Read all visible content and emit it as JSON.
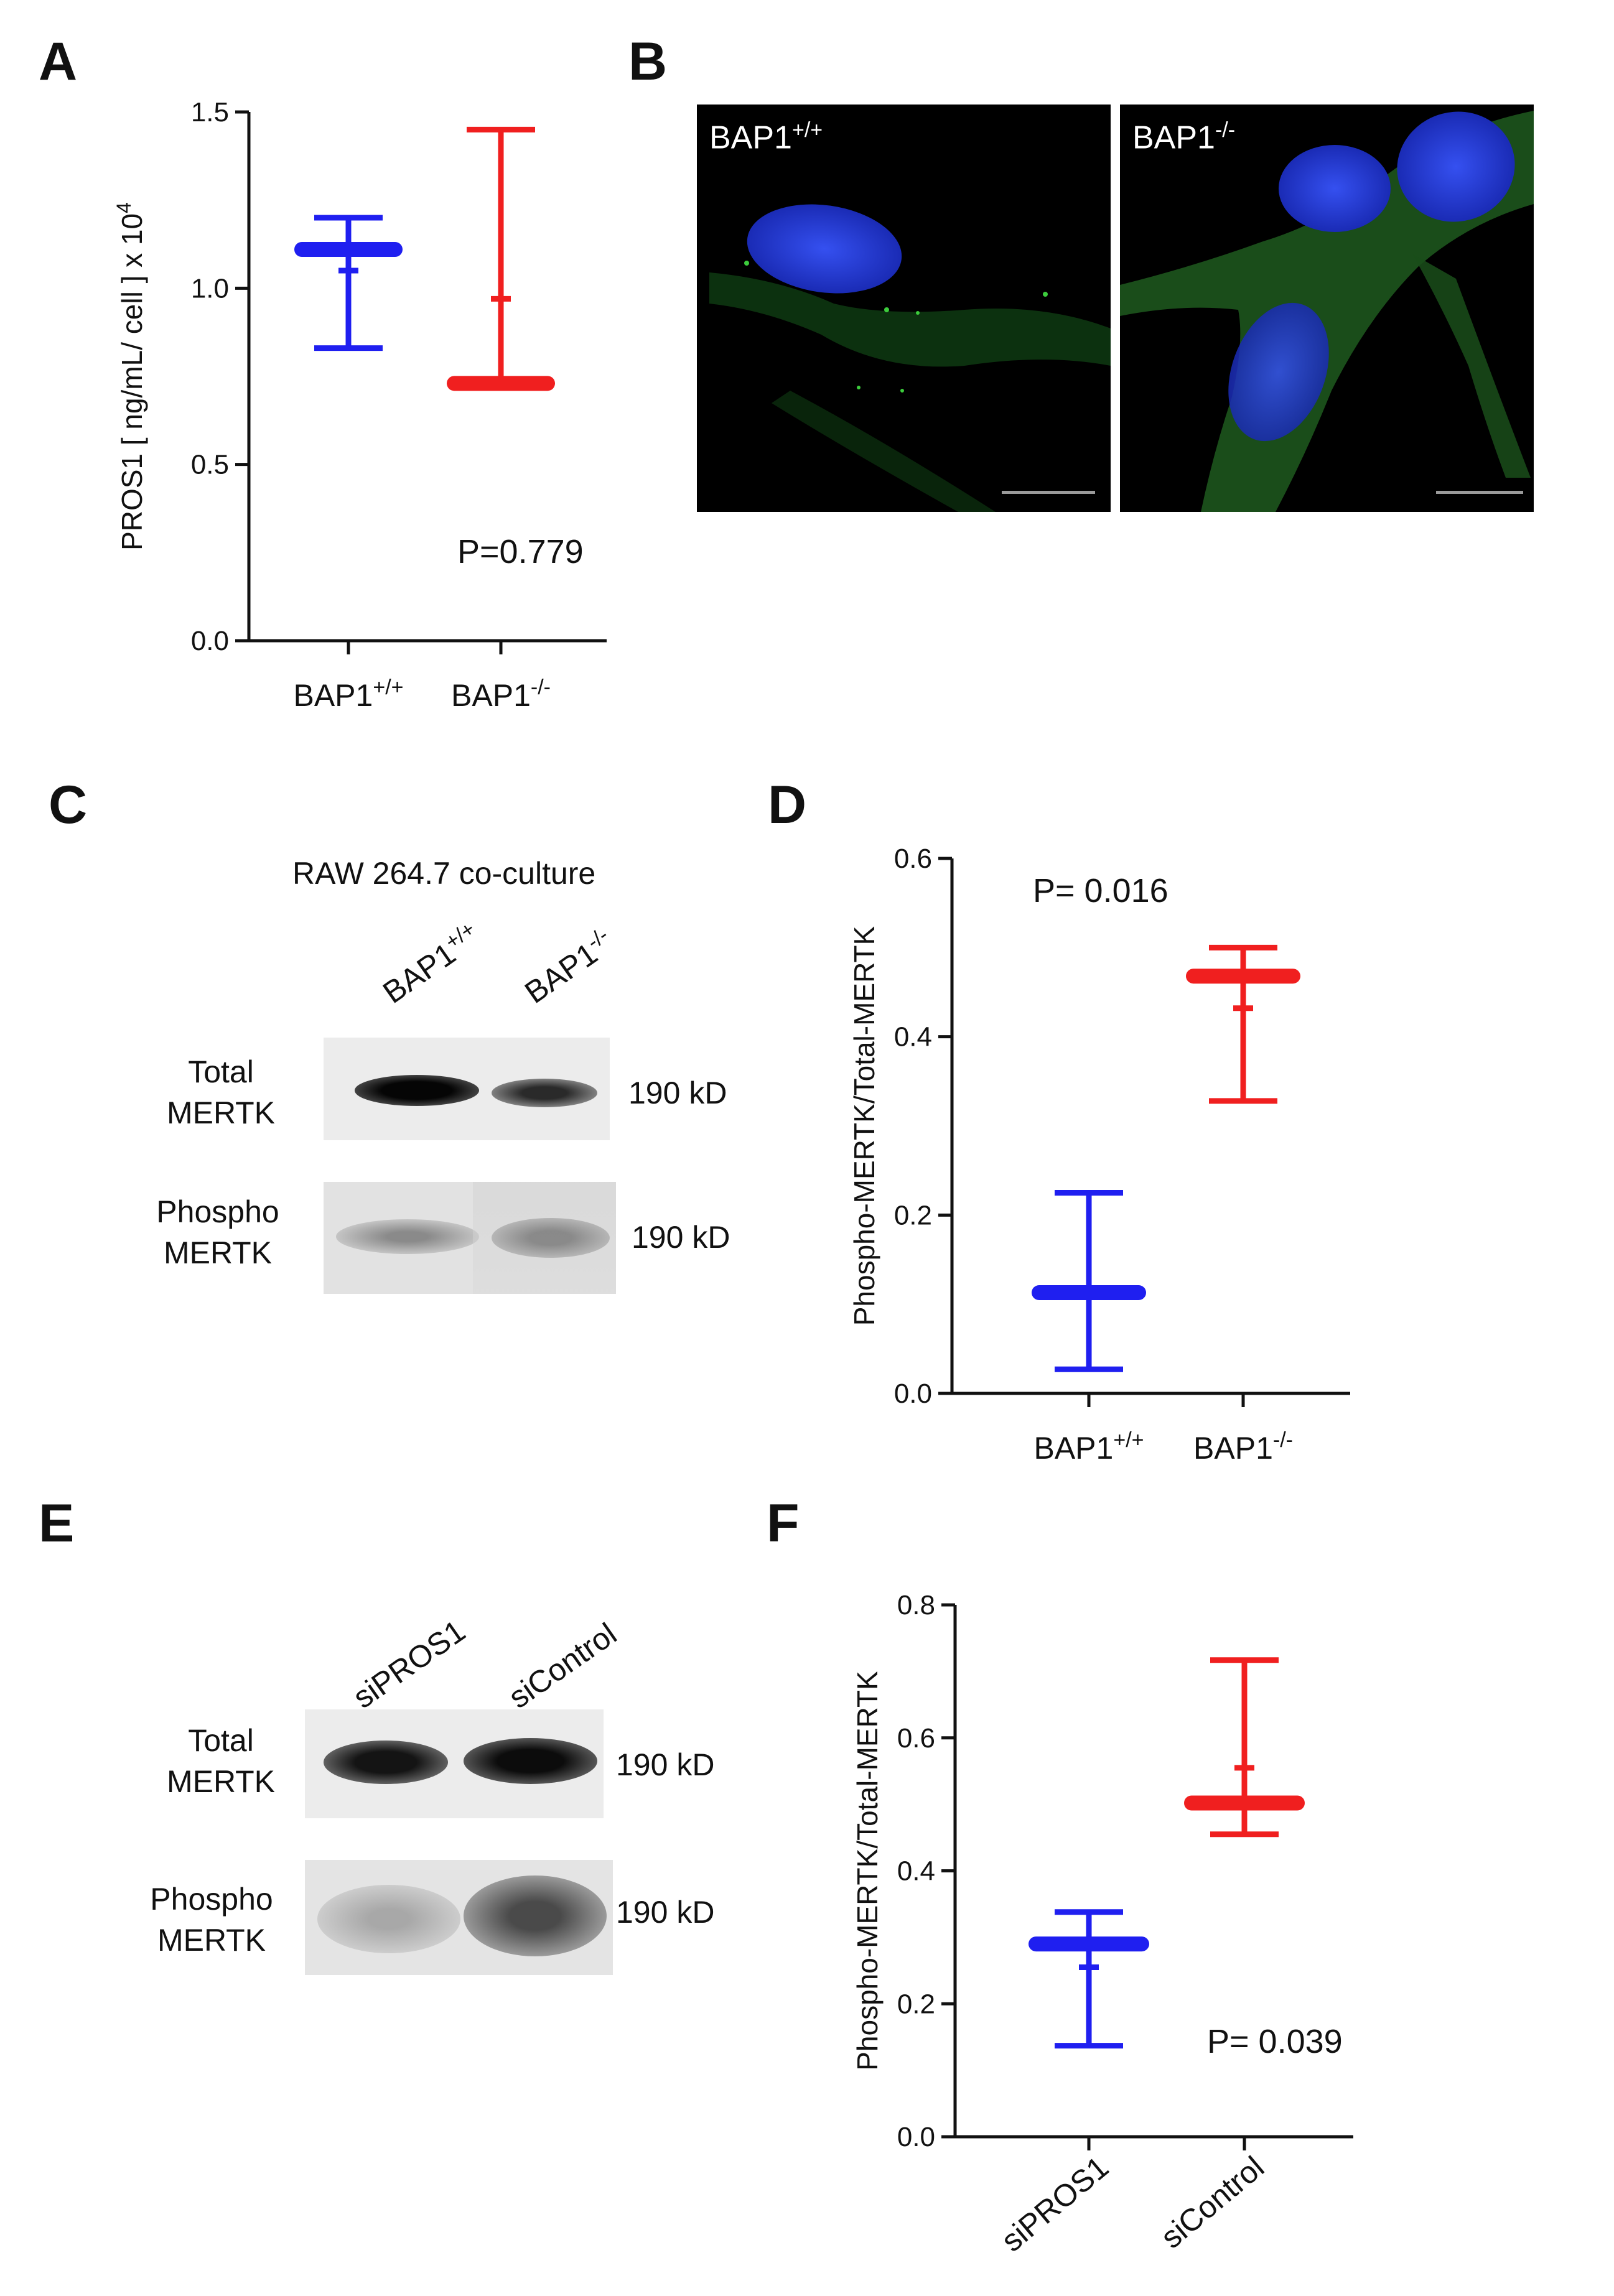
{
  "panels": {
    "A": {
      "letter": "A"
    },
    "B": {
      "letter": "B",
      "images": [
        {
          "label_base": "BAP1",
          "label_sup": "+/+"
        },
        {
          "label_base": "BAP1",
          "label_sup": "-/-"
        }
      ]
    },
    "C": {
      "letter": "C",
      "blot_title": "RAW 264.7 co-culture",
      "lanes": [
        {
          "base": "BAP1",
          "sup": "+/+"
        },
        {
          "base": "BAP1",
          "sup": "-/-"
        }
      ],
      "rows": [
        {
          "line1": "Total",
          "line2": "MERTK",
          "kd": "190 kD"
        },
        {
          "line1": "Phospho",
          "line2": "MERTK",
          "kd": "190 kD"
        }
      ]
    },
    "D": {
      "letter": "D"
    },
    "E": {
      "letter": "E",
      "lanes": [
        {
          "base": "siPROS1",
          "sup": ""
        },
        {
          "base": "siControl",
          "sup": ""
        }
      ],
      "rows": [
        {
          "line1": "Total",
          "line2": "MERTK",
          "kd": "190 kD"
        },
        {
          "line1": "Phospho",
          "line2": "MERTK",
          "kd": "190 kD"
        }
      ]
    },
    "F": {
      "letter": "F"
    }
  },
  "colors": {
    "blue": "#1f1ff0",
    "red": "#f01f1f",
    "nucleus": "#2a3fe0",
    "stain": "#3a9a3a"
  },
  "chart_data": [
    {
      "id": "A",
      "type": "scatter",
      "ylabel": "PROS1 [ ng/mL/ cell ] x 10",
      "ylabel_sup": "4",
      "ylim": [
        0,
        1.5
      ],
      "yticks": [
        0.0,
        0.5,
        1.0,
        1.5
      ],
      "ytick_labels": [
        "0.0",
        "0.5",
        "1.0",
        "1.5"
      ],
      "categories": [
        {
          "base": "BAP1",
          "sup": "+/+"
        },
        {
          "base": "BAP1",
          "sup": "-/-"
        }
      ],
      "series": [
        {
          "color": "#1f1ff0",
          "max": 1.2,
          "min": 0.83,
          "median": 1.11,
          "mean": 1.05
        },
        {
          "color": "#f01f1f",
          "max": 1.45,
          "min": 0.73,
          "median": 0.73,
          "mean": 0.97
        }
      ],
      "annotation": "P=0.779",
      "annotation_pos": "bottom-right"
    },
    {
      "id": "D",
      "type": "scatter",
      "ylabel": "Phospho-MERTK/Total-MERTK",
      "ylabel_sup": "",
      "ylim": [
        0,
        0.6
      ],
      "yticks": [
        0.0,
        0.2,
        0.4,
        0.6
      ],
      "ytick_labels": [
        "0.0",
        "0.2",
        "0.4",
        "0.6"
      ],
      "categories": [
        {
          "base": "BAP1",
          "sup": "+/+"
        },
        {
          "base": "BAP1",
          "sup": "-/-"
        }
      ],
      "series": [
        {
          "color": "#1f1ff0",
          "max": 0.225,
          "min": 0.027,
          "median": 0.113,
          "mean": 0.113
        },
        {
          "color": "#f01f1f",
          "max": 0.5,
          "min": 0.328,
          "median": 0.468,
          "mean": 0.432
        }
      ],
      "annotation": "P= 0.016",
      "annotation_pos": "top-left"
    },
    {
      "id": "F",
      "type": "scatter",
      "ylabel": "Phospho-MERTK/Total-MERTK",
      "ylabel_sup": "",
      "ylim": [
        0,
        0.8
      ],
      "yticks": [
        0.0,
        0.2,
        0.4,
        0.6,
        0.8
      ],
      "ytick_labels": [
        "0.0",
        "0.2",
        "0.4",
        "0.6",
        "0.8"
      ],
      "categories": [
        {
          "base": "siPROS1",
          "sup": ""
        },
        {
          "base": "siControl",
          "sup": ""
        }
      ],
      "rotate_categories": true,
      "series": [
        {
          "color": "#1f1ff0",
          "max": 0.338,
          "min": 0.137,
          "median": 0.29,
          "mean": 0.255
        },
        {
          "color": "#f01f1f",
          "max": 0.717,
          "min": 0.455,
          "median": 0.502,
          "mean": 0.555
        }
      ],
      "annotation": "P= 0.039",
      "annotation_pos": "bottom-right"
    }
  ]
}
